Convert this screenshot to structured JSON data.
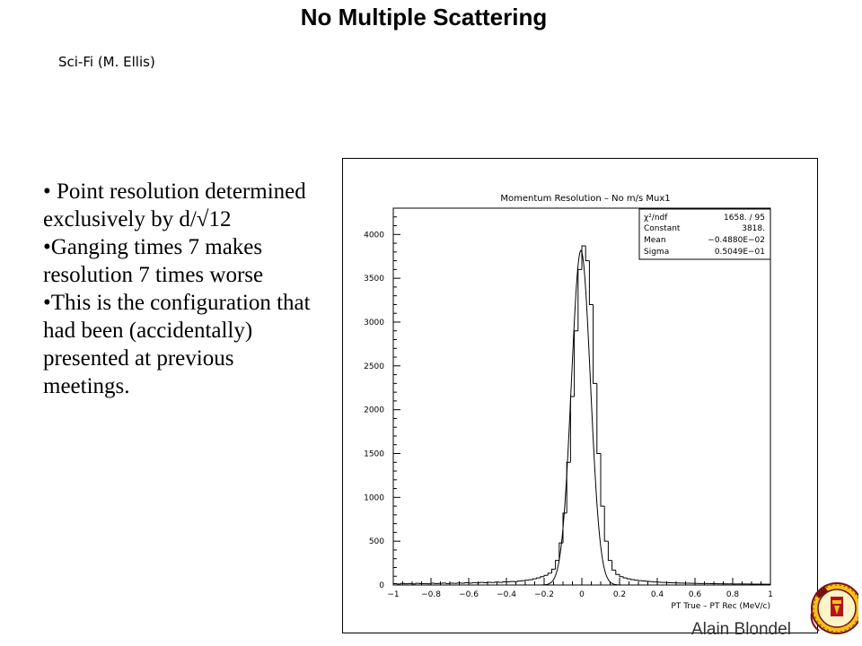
{
  "slide": {
    "title": "No Multiple Scattering",
    "subtitle": "Sci-Fi (M. Ellis)",
    "author": "Alain Blondel",
    "bullets": [
      "• Point resolution determined exclusively by d/√12",
      "•Ganging times 7 makes resolution 7 times worse",
      "•This is the configuration that had been (accidentally) presented at previous meetings."
    ]
  },
  "chart_data": {
    "type": "histogram",
    "title": "Momentum Resolution – No m/s Mux1",
    "xlabel": "PT True – PT Rec (MeV/c)",
    "ylabel": "",
    "xlim": [
      -1,
      1
    ],
    "ylim": [
      0,
      4300
    ],
    "x_ticks": [
      "−1",
      "−0.8",
      "−0.6",
      "−0.4",
      "−0.2",
      "0",
      "0.2",
      "0.4",
      "0.6",
      "0.8",
      "1"
    ],
    "y_ticks": [
      "0",
      "500",
      "1000",
      "1500",
      "2000",
      "2500",
      "3000",
      "3500",
      "4000"
    ],
    "grid": false,
    "histogram_bins": [
      [
        -1.0,
        15
      ],
      [
        -0.98,
        12
      ],
      [
        -0.96,
        18
      ],
      [
        -0.94,
        14
      ],
      [
        -0.92,
        16
      ],
      [
        -0.9,
        13
      ],
      [
        -0.88,
        19
      ],
      [
        -0.86,
        15
      ],
      [
        -0.84,
        17
      ],
      [
        -0.82,
        14
      ],
      [
        -0.8,
        20
      ],
      [
        -0.78,
        16
      ],
      [
        -0.76,
        18
      ],
      [
        -0.74,
        22
      ],
      [
        -0.72,
        17
      ],
      [
        -0.7,
        21
      ],
      [
        -0.68,
        19
      ],
      [
        -0.66,
        23
      ],
      [
        -0.64,
        20
      ],
      [
        -0.62,
        25
      ],
      [
        -0.6,
        22
      ],
      [
        -0.58,
        27
      ],
      [
        -0.56,
        24
      ],
      [
        -0.54,
        29
      ],
      [
        -0.52,
        26
      ],
      [
        -0.5,
        31
      ],
      [
        -0.48,
        28
      ],
      [
        -0.46,
        33
      ],
      [
        -0.44,
        30
      ],
      [
        -0.42,
        36
      ],
      [
        -0.4,
        34
      ],
      [
        -0.38,
        40
      ],
      [
        -0.36,
        38
      ],
      [
        -0.34,
        45
      ],
      [
        -0.32,
        48
      ],
      [
        -0.3,
        55
      ],
      [
        -0.28,
        60
      ],
      [
        -0.26,
        70
      ],
      [
        -0.24,
        80
      ],
      [
        -0.22,
        95
      ],
      [
        -0.2,
        110
      ],
      [
        -0.18,
        135
      ],
      [
        -0.16,
        180
      ],
      [
        -0.14,
        280
      ],
      [
        -0.12,
        480
      ],
      [
        -0.1,
        820
      ],
      [
        -0.08,
        1400
      ],
      [
        -0.06,
        2150
      ],
      [
        -0.04,
        2900
      ],
      [
        -0.02,
        3600
      ],
      [
        0.0,
        3870
      ],
      [
        0.02,
        3700
      ],
      [
        0.04,
        3200
      ],
      [
        0.06,
        2300
      ],
      [
        0.08,
        1500
      ],
      [
        0.1,
        900
      ],
      [
        0.12,
        500
      ],
      [
        0.14,
        280
      ],
      [
        0.16,
        170
      ],
      [
        0.18,
        120
      ],
      [
        0.2,
        95
      ],
      [
        0.22,
        80
      ],
      [
        0.24,
        70
      ],
      [
        0.26,
        62
      ],
      [
        0.28,
        55
      ],
      [
        0.3,
        50
      ],
      [
        0.32,
        46
      ],
      [
        0.34,
        42
      ],
      [
        0.36,
        38
      ],
      [
        0.38,
        35
      ],
      [
        0.4,
        32
      ],
      [
        0.42,
        30
      ],
      [
        0.44,
        28
      ],
      [
        0.46,
        26
      ],
      [
        0.48,
        24
      ],
      [
        0.5,
        23
      ],
      [
        0.52,
        22
      ],
      [
        0.54,
        21
      ],
      [
        0.56,
        20
      ],
      [
        0.58,
        19
      ],
      [
        0.6,
        18
      ],
      [
        0.62,
        17
      ],
      [
        0.64,
        17
      ],
      [
        0.66,
        16
      ],
      [
        0.68,
        15
      ],
      [
        0.7,
        15
      ],
      [
        0.72,
        14
      ],
      [
        0.74,
        14
      ],
      [
        0.76,
        13
      ],
      [
        0.78,
        13
      ],
      [
        0.8,
        12
      ],
      [
        0.82,
        12
      ],
      [
        0.84,
        12
      ],
      [
        0.86,
        11
      ],
      [
        0.88,
        11
      ],
      [
        0.9,
        10
      ],
      [
        0.92,
        10
      ],
      [
        0.94,
        10
      ],
      [
        0.96,
        9
      ],
      [
        0.98,
        9
      ]
    ],
    "gaussian_fit": {
      "chi2_ndf": "1658.  /  95",
      "constant": "3818.",
      "mean": "−0.4880E−02",
      "sigma": "0.5049E−01",
      "constant_value": 3818,
      "mean_value": -0.00488,
      "sigma_value": 0.05049
    },
    "stats_box": {
      "chi2_label": "χ²/ndf",
      "constant_label": "Constant",
      "mean_label": "Mean",
      "sigma_label": "Sigma"
    }
  }
}
